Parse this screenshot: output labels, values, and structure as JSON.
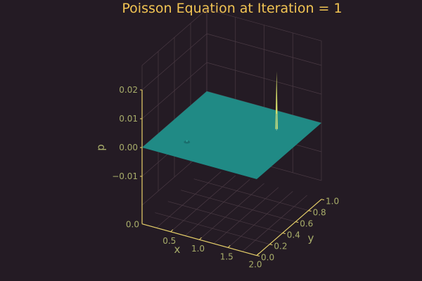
{
  "chart_data": {
    "type": "surface",
    "title": "Poisson Equation at Iteration = 1",
    "xlabel": "x",
    "ylabel": "y",
    "zlabel": "p",
    "xlim": [
      0.0,
      2.0
    ],
    "ylim": [
      0.0,
      1.0
    ],
    "zlim": [
      -0.02,
      0.02
    ],
    "x_ticks": [
      "0.5",
      "1.0",
      "1.5",
      "2.0"
    ],
    "y_ticks": [
      "0.0",
      "0.2",
      "0.4",
      "0.6",
      "0.8",
      "1.0"
    ],
    "z_ticks": [
      "0.02",
      "0.01",
      "0.00",
      "−0.01"
    ],
    "x_origin_label": "0.0",
    "surface_level": 0.0,
    "sources": [
      {
        "x": 1.5,
        "y": 0.75,
        "p": 0.02,
        "kind": "positive-spike"
      },
      {
        "x": 0.5,
        "y": 0.25,
        "p": -0.0005,
        "kind": "negative-dip"
      }
    ],
    "grid": true,
    "colors": {
      "background": "#241b24",
      "surface": "#208a85",
      "spike": "#d7e06a",
      "axis": "#e8d16a",
      "text": "#a8ad6a",
      "title": "#f2c453",
      "grid": "#4a3a44"
    }
  }
}
